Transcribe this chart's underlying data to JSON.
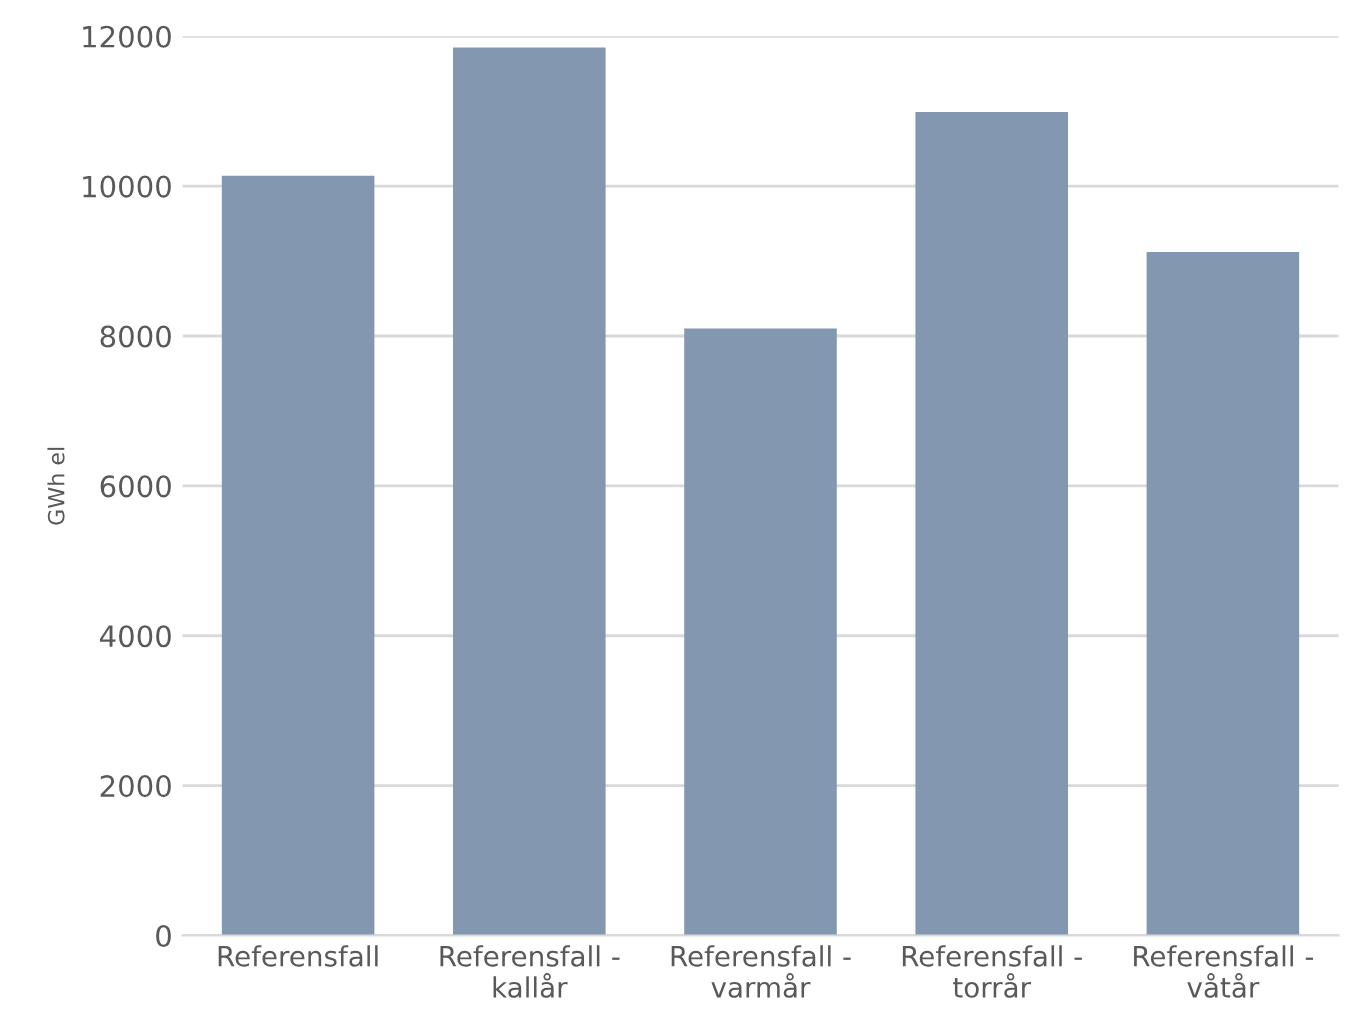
{
  "chart_data": {
    "type": "bar",
    "ylabel": "GWh el",
    "categories": [
      "Referensfall",
      "Referensfall -\nkallår",
      "Referensfall -\nvarmår",
      "Referensfall -\ntorrår",
      "Referensfall -\nvåtår"
    ],
    "values": [
      10140,
      11850,
      8100,
      10990,
      9120
    ],
    "color": "#8497b0",
    "ylim": [
      0,
      12000
    ],
    "yticks": [
      0,
      2000,
      4000,
      6000,
      8000,
      10000,
      12000
    ],
    "grid": "y",
    "legend": false
  }
}
